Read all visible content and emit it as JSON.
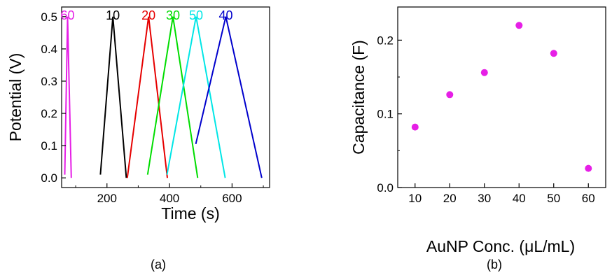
{
  "chart_data": [
    {
      "type": "line",
      "panel_label": "(a)",
      "xlabel": "Time (s)",
      "ylabel": "Potential (V)",
      "xlim": [
        55,
        720
      ],
      "ylim": [
        -0.03,
        0.53
      ],
      "x_ticks": [
        200,
        400,
        600
      ],
      "x_tick_labels": [
        "200",
        "400",
        "600"
      ],
      "y_ticks": [
        0.0,
        0.1,
        0.2,
        0.3,
        0.4,
        0.5
      ],
      "y_tick_labels": [
        "0.0",
        "0.1",
        "0.2",
        "0.3",
        "0.4",
        "0.5"
      ],
      "grid": false,
      "legend": "labels above each curve",
      "series": [
        {
          "name": "60",
          "color": "#e61fe6",
          "x": [
            65,
            74,
            86
          ],
          "y": [
            0.01,
            0.5,
            0.0
          ]
        },
        {
          "name": "10",
          "color": "#000000",
          "x": [
            179,
            219,
            262
          ],
          "y": [
            0.01,
            0.5,
            0.0
          ]
        },
        {
          "name": "20",
          "color": "#e60000",
          "x": [
            265,
            333,
            393
          ],
          "y": [
            0.0,
            0.5,
            0.0
          ]
        },
        {
          "name": "30",
          "color": "#00dd00",
          "x": [
            330,
            411,
            490
          ],
          "y": [
            0.01,
            0.5,
            0.0
          ]
        },
        {
          "name": "50",
          "color": "#00e6e6",
          "x": [
            392,
            485,
            578
          ],
          "y": [
            0.01,
            0.5,
            0.0
          ]
        },
        {
          "name": "40",
          "color": "#0000cc",
          "x": [
            484,
            580,
            695
          ],
          "y": [
            0.105,
            0.5,
            0.0
          ]
        }
      ]
    },
    {
      "type": "scatter",
      "panel_label": "(b)",
      "xlabel": "AuNP Conc. (μL/mL)",
      "ylabel": "Capacitance (F)",
      "xlim": [
        5,
        65
      ],
      "ylim": [
        0.0,
        0.245
      ],
      "x_ticks": [
        10,
        20,
        30,
        40,
        50,
        60
      ],
      "x_tick_labels": [
        "10",
        "20",
        "30",
        "40",
        "50",
        "60"
      ],
      "y_ticks": [
        0.0,
        0.1,
        0.2
      ],
      "y_tick_labels": [
        "0.0",
        "0.1",
        "0.2"
      ],
      "grid": false,
      "marker_color": "#e61fe6",
      "x": [
        10,
        20,
        30,
        40,
        50,
        60
      ],
      "y": [
        0.082,
        0.126,
        0.156,
        0.22,
        0.182,
        0.026
      ]
    }
  ]
}
